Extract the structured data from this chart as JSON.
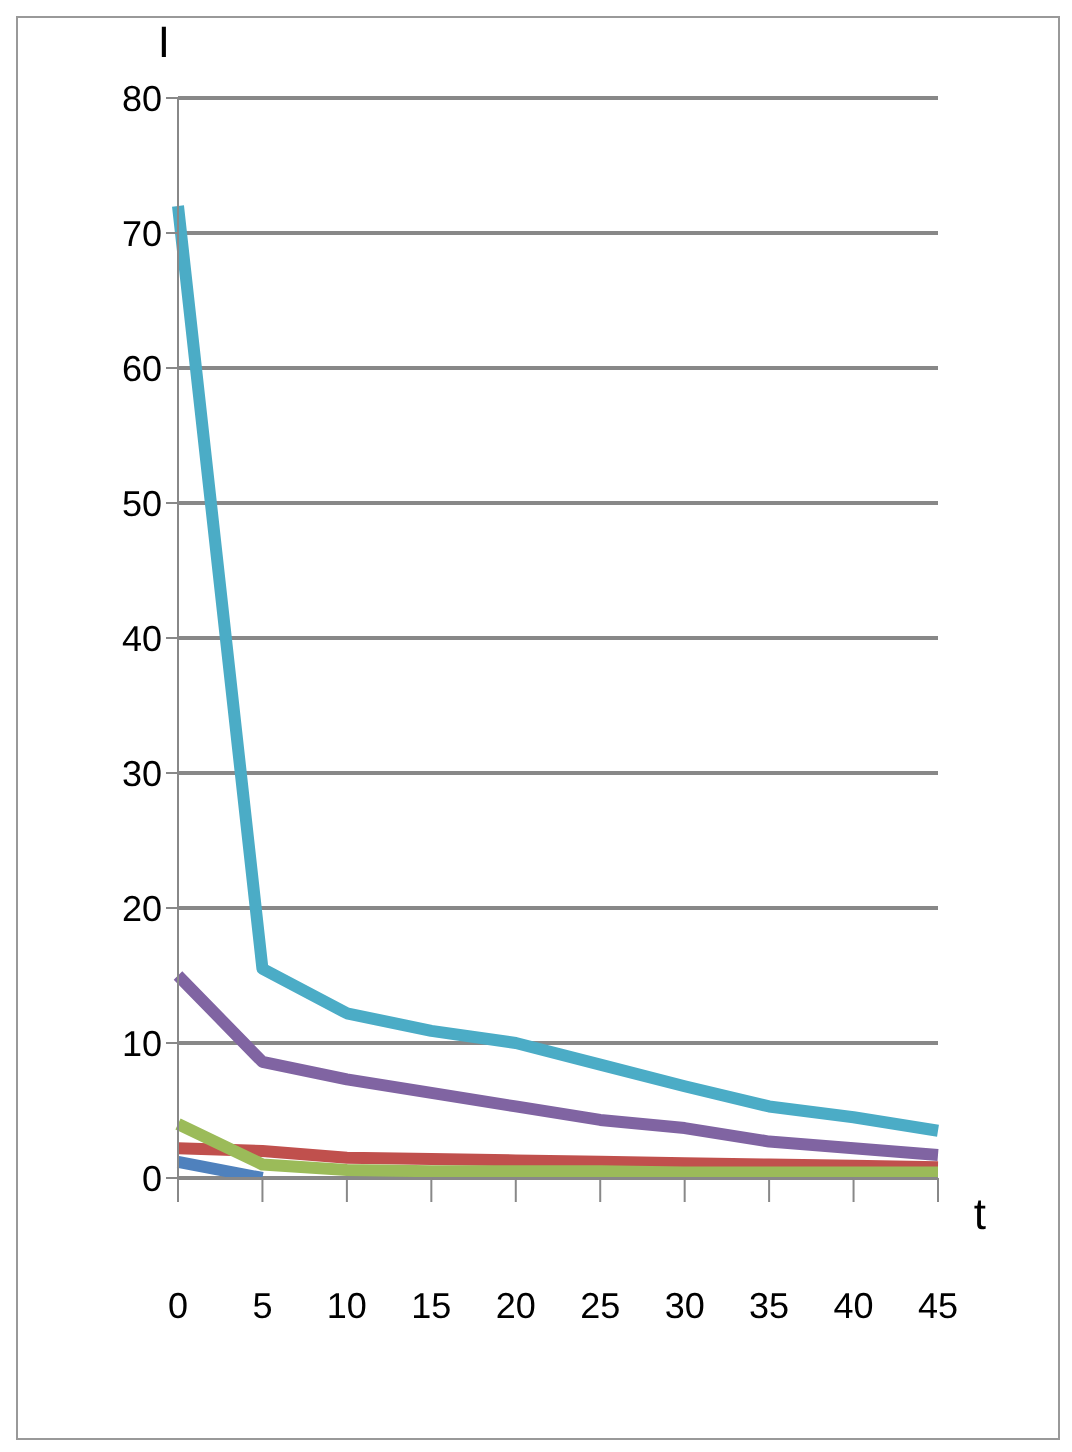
{
  "chart_data": {
    "type": "line",
    "xlabel": "t",
    "ylabel": "I",
    "categories": [
      "0",
      "5",
      "10",
      "15",
      "20",
      "25",
      "30",
      "35",
      "40",
      "45"
    ],
    "series": [
      {
        "color": "#4f81bd",
        "values": [
          1.2,
          0,
          null,
          null,
          null,
          null,
          null,
          null,
          null,
          null
        ]
      },
      {
        "color": "#c0504d",
        "values": [
          2.2,
          2,
          1.5,
          1.4,
          1.3,
          1.2,
          1.1,
          1,
          0.9,
          0.8
        ]
      },
      {
        "color": "#9bbb59",
        "values": [
          4,
          1,
          0.6,
          0.5,
          0.5,
          0.5,
          0.4,
          0.4,
          0.4,
          0.4
        ]
      },
      {
        "color": "#8064a2",
        "values": [
          15,
          8.6,
          7.3,
          6.3,
          5.3,
          4.3,
          3.7,
          2.7,
          2.2,
          1.7
        ]
      },
      {
        "color": "#4bacc6",
        "values": [
          72,
          15.5,
          12.2,
          10.9,
          10,
          8.4,
          6.8,
          5.3,
          4.5,
          3.5
        ]
      }
    ],
    "ylim": [
      0,
      80
    ],
    "yticks": [
      0,
      10,
      20,
      30,
      40,
      50,
      60,
      70,
      80
    ],
    "grid": "y",
    "legend": false,
    "marker": "none",
    "line_style": "solid"
  }
}
